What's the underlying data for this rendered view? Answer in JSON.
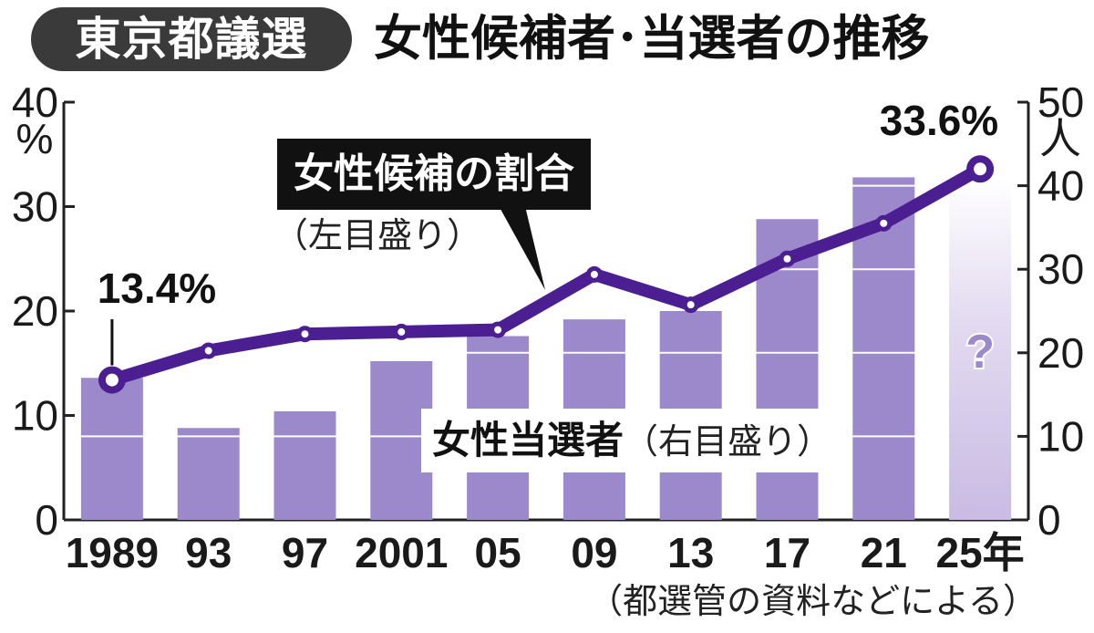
{
  "header": {
    "tag": "東京都議選",
    "title": "女性候補者･当選者の推移"
  },
  "source": "（都選管の資料などによる）",
  "chart_data": {
    "type": "bar+line",
    "categories": [
      "1989",
      "93",
      "97",
      "2001",
      "05",
      "09",
      "13",
      "17",
      "21",
      "25年"
    ],
    "left_axis": {
      "unit": "%",
      "ticks": [
        "0",
        "10",
        "20",
        "30",
        "40"
      ],
      "range": [
        0,
        40
      ]
    },
    "right_axis": {
      "unit": "人",
      "ticks": [
        "0",
        "10",
        "20",
        "30",
        "40",
        "50"
      ],
      "range": [
        0,
        50
      ]
    },
    "series": [
      {
        "name": "女性当選者",
        "note": "（右目盛り）",
        "type": "bar",
        "axis": "right",
        "values": [
          17,
          11,
          13,
          19,
          22,
          24,
          25,
          36,
          41,
          null
        ],
        "pending_label": "?"
      },
      {
        "name": "女性候補の割合",
        "note": "（左目盛り）",
        "type": "line",
        "axis": "left",
        "values": [
          13.4,
          16.2,
          17.8,
          18.0,
          18.2,
          23.5,
          20.6,
          25.0,
          28.4,
          33.6
        ]
      }
    ],
    "annotations": {
      "first_value_label": "13.4%",
      "last_value_label": "33.6%"
    },
    "colors": {
      "bar": "#9b89cc",
      "bar_pending": "#d8cdec",
      "line": "#4b1e92",
      "bar_divider": "#ffffff"
    }
  }
}
